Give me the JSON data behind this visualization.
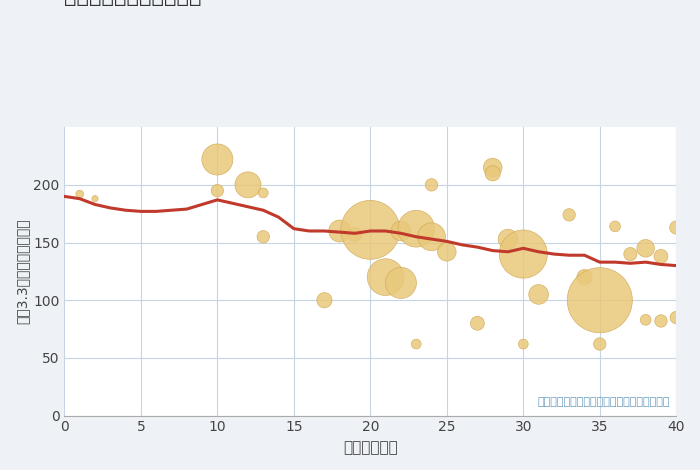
{
  "xlabel": "築年数（年）",
  "ylabel": "坪（3.3㎡）単価（万円）",
  "annotation": "円の大きさは、取引のあった物件面積を示す",
  "background_color": "#eef2f6",
  "plot_bg_color": "#ffffff",
  "scatter_color": "#e8c87a",
  "scatter_edge_color": "#d4a855",
  "line_color": "#c0392b",
  "grid_color": "#c5d5e5",
  "xlim": [
    0,
    40
  ],
  "ylim": [
    0,
    250
  ],
  "xticks": [
    0,
    5,
    10,
    15,
    20,
    25,
    30,
    35,
    40
  ],
  "yticks": [
    0,
    50,
    100,
    150,
    200
  ],
  "scatter_x": [
    1,
    2,
    10,
    10,
    12,
    13,
    13,
    17,
    18,
    19,
    20,
    21,
    22,
    22,
    23,
    23,
    24,
    24,
    25,
    27,
    28,
    28,
    29,
    30,
    30,
    31,
    33,
    34,
    35,
    35,
    36,
    37,
    38,
    38,
    39,
    39,
    40,
    40
  ],
  "scatter_y": [
    192,
    188,
    222,
    195,
    200,
    193,
    155,
    100,
    160,
    157,
    161,
    120,
    115,
    160,
    162,
    62,
    200,
    155,
    142,
    80,
    215,
    210,
    153,
    140,
    62,
    105,
    174,
    120,
    100,
    62,
    164,
    140,
    145,
    83,
    138,
    82,
    163,
    85
  ],
  "scatter_size": [
    30,
    20,
    500,
    80,
    350,
    50,
    80,
    120,
    250,
    100,
    1800,
    700,
    500,
    200,
    700,
    50,
    80,
    400,
    180,
    100,
    180,
    120,
    200,
    1200,
    50,
    200,
    80,
    120,
    2200,
    80,
    60,
    90,
    160,
    60,
    100,
    80,
    90,
    80
  ],
  "trend_x": [
    0,
    1,
    2,
    3,
    4,
    5,
    6,
    7,
    8,
    9,
    10,
    11,
    12,
    13,
    14,
    15,
    16,
    17,
    18,
    19,
    20,
    21,
    22,
    23,
    24,
    25,
    26,
    27,
    28,
    29,
    30,
    31,
    32,
    33,
    34,
    35,
    36,
    37,
    38,
    39,
    40
  ],
  "trend_y": [
    190,
    188,
    183,
    180,
    178,
    177,
    177,
    178,
    179,
    183,
    187,
    184,
    181,
    178,
    172,
    162,
    160,
    160,
    159,
    158,
    160,
    160,
    158,
    155,
    153,
    151,
    148,
    146,
    143,
    142,
    145,
    142,
    140,
    139,
    139,
    133,
    133,
    132,
    133,
    131,
    130
  ]
}
